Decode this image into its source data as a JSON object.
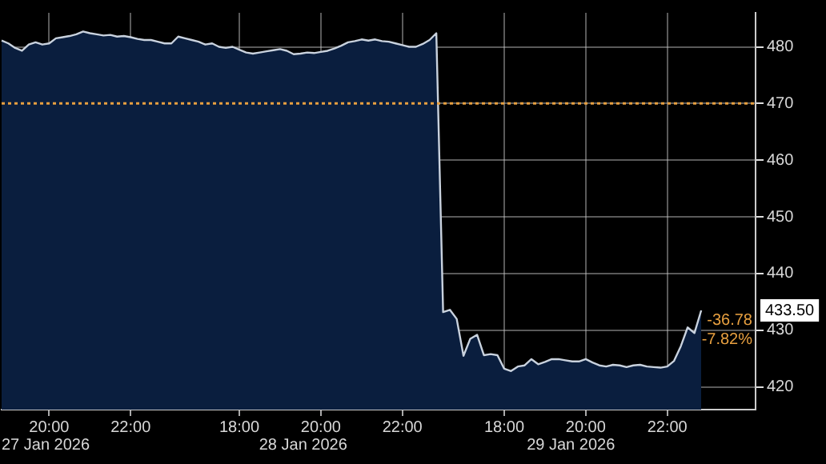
{
  "chart_data": {
    "type": "area",
    "categories": [
      null,
      null,
      null,
      null,
      null,
      null,
      null,
      "20:00",
      null,
      null,
      null,
      null,
      null,
      null,
      null,
      null,
      null,
      null,
      null,
      "22:00",
      null,
      null,
      null,
      null,
      null,
      null,
      null,
      null,
      null,
      null,
      null,
      null,
      null,
      null,
      null,
      "18:00",
      null,
      null,
      null,
      null,
      null,
      null,
      null,
      null,
      null,
      null,
      null,
      "20:00",
      null,
      null,
      null,
      null,
      null,
      null,
      null,
      null,
      null,
      null,
      null,
      "22:00",
      null,
      null,
      null,
      null,
      null,
      null,
      null,
      null,
      null,
      null,
      null,
      null,
      null,
      null,
      "18:00",
      null,
      null,
      null,
      null,
      null,
      null,
      null,
      null,
      null,
      null,
      null,
      "20:00",
      null,
      null,
      null,
      null,
      null,
      null,
      null,
      null,
      null,
      null,
      null,
      "22:00",
      null,
      null,
      null,
      null,
      null,
      null,
      null,
      null,
      null,
      null,
      null,
      null,
      null
    ],
    "series": [
      {
        "color": "#0a1e3e",
        "values": [
          481.1,
          480.6,
          479.8,
          479.3,
          480.4,
          480.8,
          480.4,
          480.6,
          481.5,
          481.7,
          481.9,
          482.2,
          482.7,
          482.4,
          482.2,
          482.0,
          482.1,
          481.8,
          481.9,
          481.7,
          481.4,
          481.2,
          481.2,
          480.9,
          480.6,
          480.6,
          481.8,
          481.5,
          481.2,
          480.9,
          480.4,
          480.6,
          480.0,
          479.8,
          480.0,
          479.5,
          479.0,
          478.8,
          479.0,
          479.2,
          479.4,
          479.6,
          479.3,
          478.7,
          478.8,
          479.0,
          478.9,
          479.1,
          479.3,
          479.7,
          480.2,
          480.8,
          481.0,
          481.3,
          481.1,
          481.3,
          481.0,
          480.9,
          480.6,
          480.3,
          480.0,
          480.0,
          480.5,
          481.2,
          482.4,
          433.2,
          433.6,
          432.0,
          425.5,
          428.5,
          429.2,
          425.6,
          425.8,
          425.6,
          423.2,
          422.8,
          423.6,
          423.8,
          424.9,
          424.0,
          424.4,
          424.9,
          424.9,
          424.7,
          424.5,
          424.5,
          424.9,
          424.3,
          423.8,
          423.6,
          423.9,
          423.8,
          423.5,
          423.8,
          423.9,
          423.6,
          423.5,
          423.4,
          423.6,
          424.6,
          427.2,
          430.5,
          429.5,
          433.5,
          null,
          null,
          null,
          null,
          null,
          null,
          null,
          null
        ]
      }
    ],
    "ylim": [
      416,
      486
    ],
    "yticks": [
      420,
      430,
      440,
      450,
      460,
      470,
      480
    ],
    "grid": true,
    "legend": false,
    "ref_lines": [
      {
        "axis": "y",
        "value": 470,
        "color": "#e8a040",
        "line_style": "dotted"
      }
    ],
    "annotations": [
      "27 Jan 2026",
      "28 Jan 2026",
      "29 Jan 2026",
      "433.50",
      "-36.78",
      "-7.82%"
    ]
  }
}
